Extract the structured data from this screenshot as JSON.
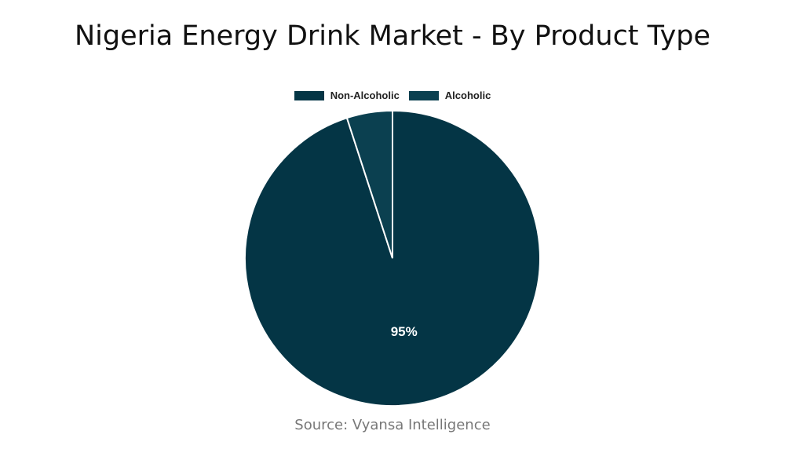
{
  "chart_data": {
    "type": "pie",
    "title": "Nigeria Energy Drink Market - By Product Type",
    "slices": [
      {
        "label": "Non-Alcoholic",
        "value": 95,
        "data_label": "95%",
        "color": "#043545"
      },
      {
        "label": "Alcoholic",
        "value": 5,
        "data_label": "",
        "color": "#0b4050"
      }
    ],
    "legend_position": "top",
    "source": "Source: Vyansa Intelligence"
  }
}
